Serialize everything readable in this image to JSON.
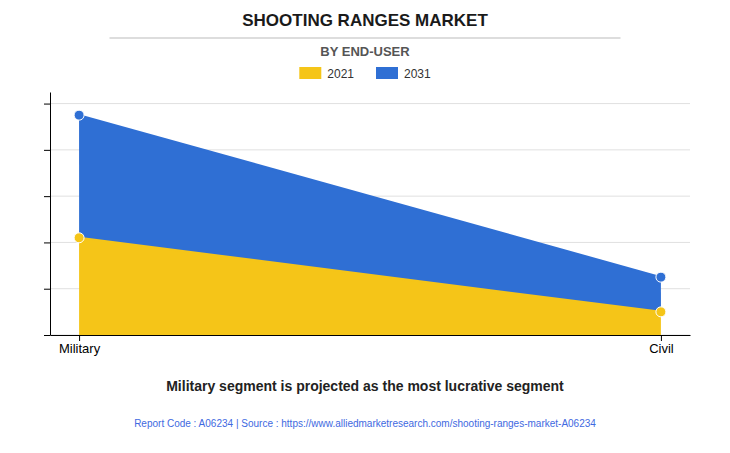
{
  "chart_data": {
    "type": "area",
    "title": "SHOOTING RANGES MARKET",
    "subtitle": "BY END-USER",
    "categories": [
      "Military",
      "Civil"
    ],
    "series": [
      {
        "name": "2021",
        "color": "#F5C518",
        "values": [
          0.42,
          0.1
        ],
        "marker": "circle"
      },
      {
        "name": "2031",
        "color": "#2F6FD4",
        "values": [
          0.95,
          0.25
        ],
        "marker": "circle"
      }
    ],
    "ylim": [
      0,
      1.05
    ],
    "yticks": [
      0,
      0.2,
      0.4,
      0.6,
      0.8,
      1.0
    ],
    "grid": true,
    "tick_labels": "x",
    "legend": "top",
    "annotations": [
      "Military segment is projected as the most lucrative segment",
      "Report Code : A06234  |  Source : https://www.alliedmarketresearch.com/shooting-ranges-market-A06234"
    ]
  }
}
